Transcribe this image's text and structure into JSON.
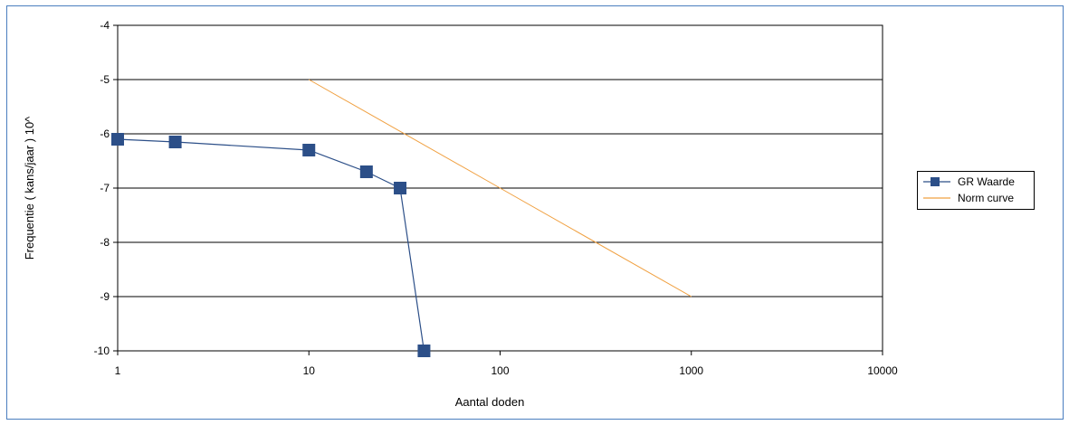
{
  "colors": {
    "frame_border": "#4a7ebf",
    "gr_series": "#2c4f88",
    "norm_series": "#f0a040",
    "gridline": "#000000"
  },
  "chart_data": {
    "type": "line",
    "xscale": "log",
    "xlabel": "Aantal doden",
    "ylabel": "Frequentie ( kans/jaar ) 10^",
    "xlim": [
      1,
      10000
    ],
    "ylim": [
      -10,
      -4
    ],
    "grid": "horizontal",
    "legend_position": "right",
    "x_ticks": [
      "1",
      "10",
      "100",
      "1000",
      "10000"
    ],
    "y_ticks": [
      "-4",
      "-5",
      "-6",
      "-7",
      "-8",
      "-9",
      "-10"
    ],
    "series": [
      {
        "name": "GR Waarde",
        "marker": "square",
        "x": [
          1,
          2,
          10,
          20,
          30,
          40
        ],
        "y": [
          -6.1,
          -6.15,
          -6.3,
          -6.7,
          -7.0,
          -10.0
        ]
      },
      {
        "name": "Norm curve",
        "marker": "none",
        "x": [
          10,
          100,
          1000
        ],
        "y": [
          -5.0,
          -7.0,
          -9.0
        ]
      }
    ]
  }
}
